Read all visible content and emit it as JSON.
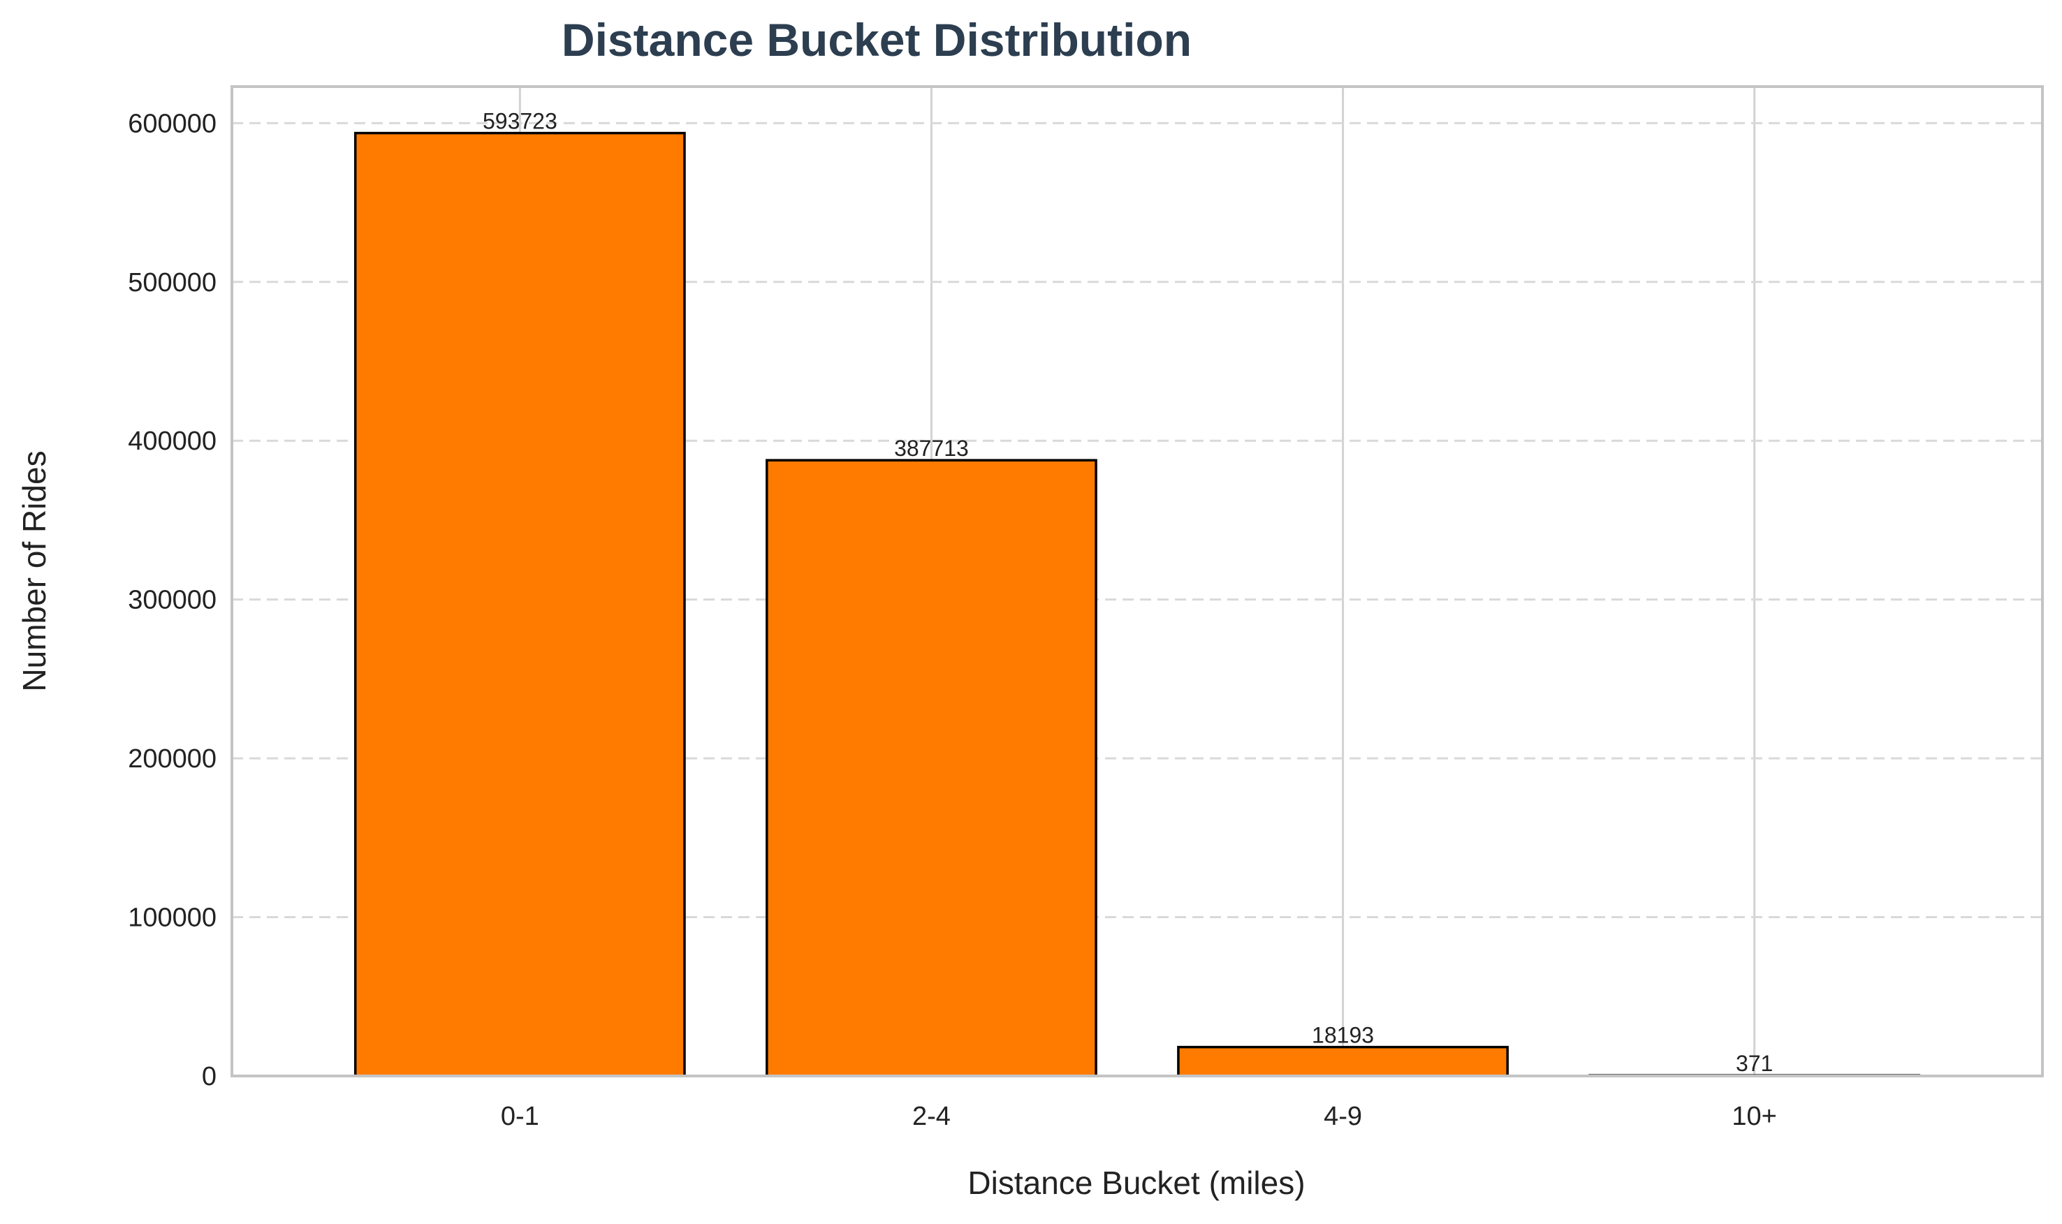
{
  "chart_data": {
    "type": "bar",
    "title": "Distance Bucket Distribution",
    "xlabel": "Distance Bucket (miles)",
    "ylabel": "Number of Rides",
    "categories": [
      "0-1",
      "2-4",
      "4-9",
      "10+"
    ],
    "values": [
      593723,
      387713,
      18193,
      371
    ],
    "value_labels": [
      "593723",
      "387713",
      "18193",
      "371"
    ],
    "yticks": [
      0,
      100000,
      200000,
      300000,
      400000,
      500000,
      600000
    ],
    "ytick_labels": [
      "0",
      "100000",
      "200000",
      "300000",
      "400000",
      "500000",
      "600000"
    ],
    "ylim": [
      0,
      623000
    ],
    "grid": true,
    "bar_color": "#ff7b00",
    "edge_color": "#000000",
    "title_color": "#2c3e50"
  }
}
